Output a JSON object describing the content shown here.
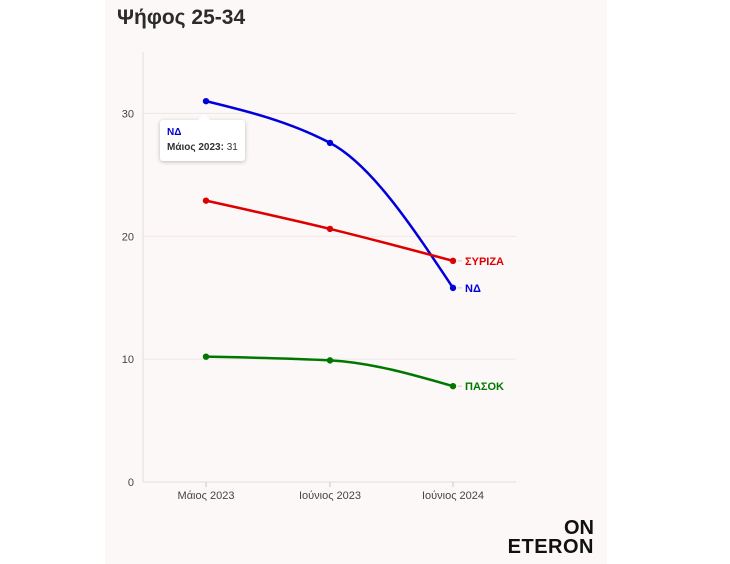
{
  "title": "Ψήφος 25-34",
  "logo": {
    "line1": "ON",
    "line2": "ETERON"
  },
  "tooltip": {
    "series": "ΝΔ",
    "category": "Μάιος 2023:",
    "value": "31"
  },
  "chart_data": {
    "type": "line",
    "title": "Ψήφος 25-34",
    "categories": [
      "Μάιος 2023",
      "Ιούνιος 2023",
      "Ιούνιος 2024"
    ],
    "ylim": [
      0,
      35
    ],
    "yticks": [
      0,
      10,
      20,
      30
    ],
    "grid": true,
    "series": [
      {
        "name": "ΝΔ",
        "values": [
          31,
          27.6,
          15.8
        ],
        "color": "#0000dd"
      },
      {
        "name": "ΣΥΡΙΖΑ",
        "values": [
          22.9,
          20.6,
          18.0
        ],
        "color": "#dd0000"
      },
      {
        "name": "ΠΑΣΟΚ",
        "values": [
          10.2,
          9.9,
          7.8
        ],
        "color": "#007700"
      }
    ]
  }
}
